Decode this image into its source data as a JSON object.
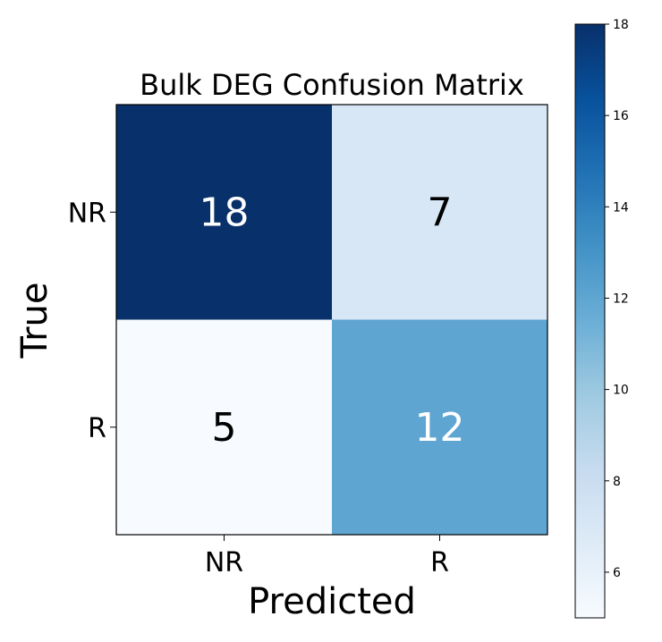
{
  "chart_data": {
    "type": "heatmap",
    "title": "Bulk DEG Confusion Matrix",
    "xlabel": "Predicted",
    "ylabel": "True",
    "x_categories": [
      "NR",
      "R"
    ],
    "y_categories": [
      "NR",
      "R"
    ],
    "values": [
      [
        18,
        7
      ],
      [
        5,
        12
      ]
    ],
    "colormap": "Blues",
    "colorbar": {
      "range": [
        5,
        18
      ],
      "ticks": [
        6,
        8,
        10,
        12,
        14,
        16,
        18
      ]
    },
    "grid": false,
    "legend": "colorbar-right"
  },
  "colors": {
    "cmap_low": "#f7fbff",
    "cmap_high": "#08306b",
    "text_dark": "#000000",
    "text_light": "#ffffff"
  }
}
